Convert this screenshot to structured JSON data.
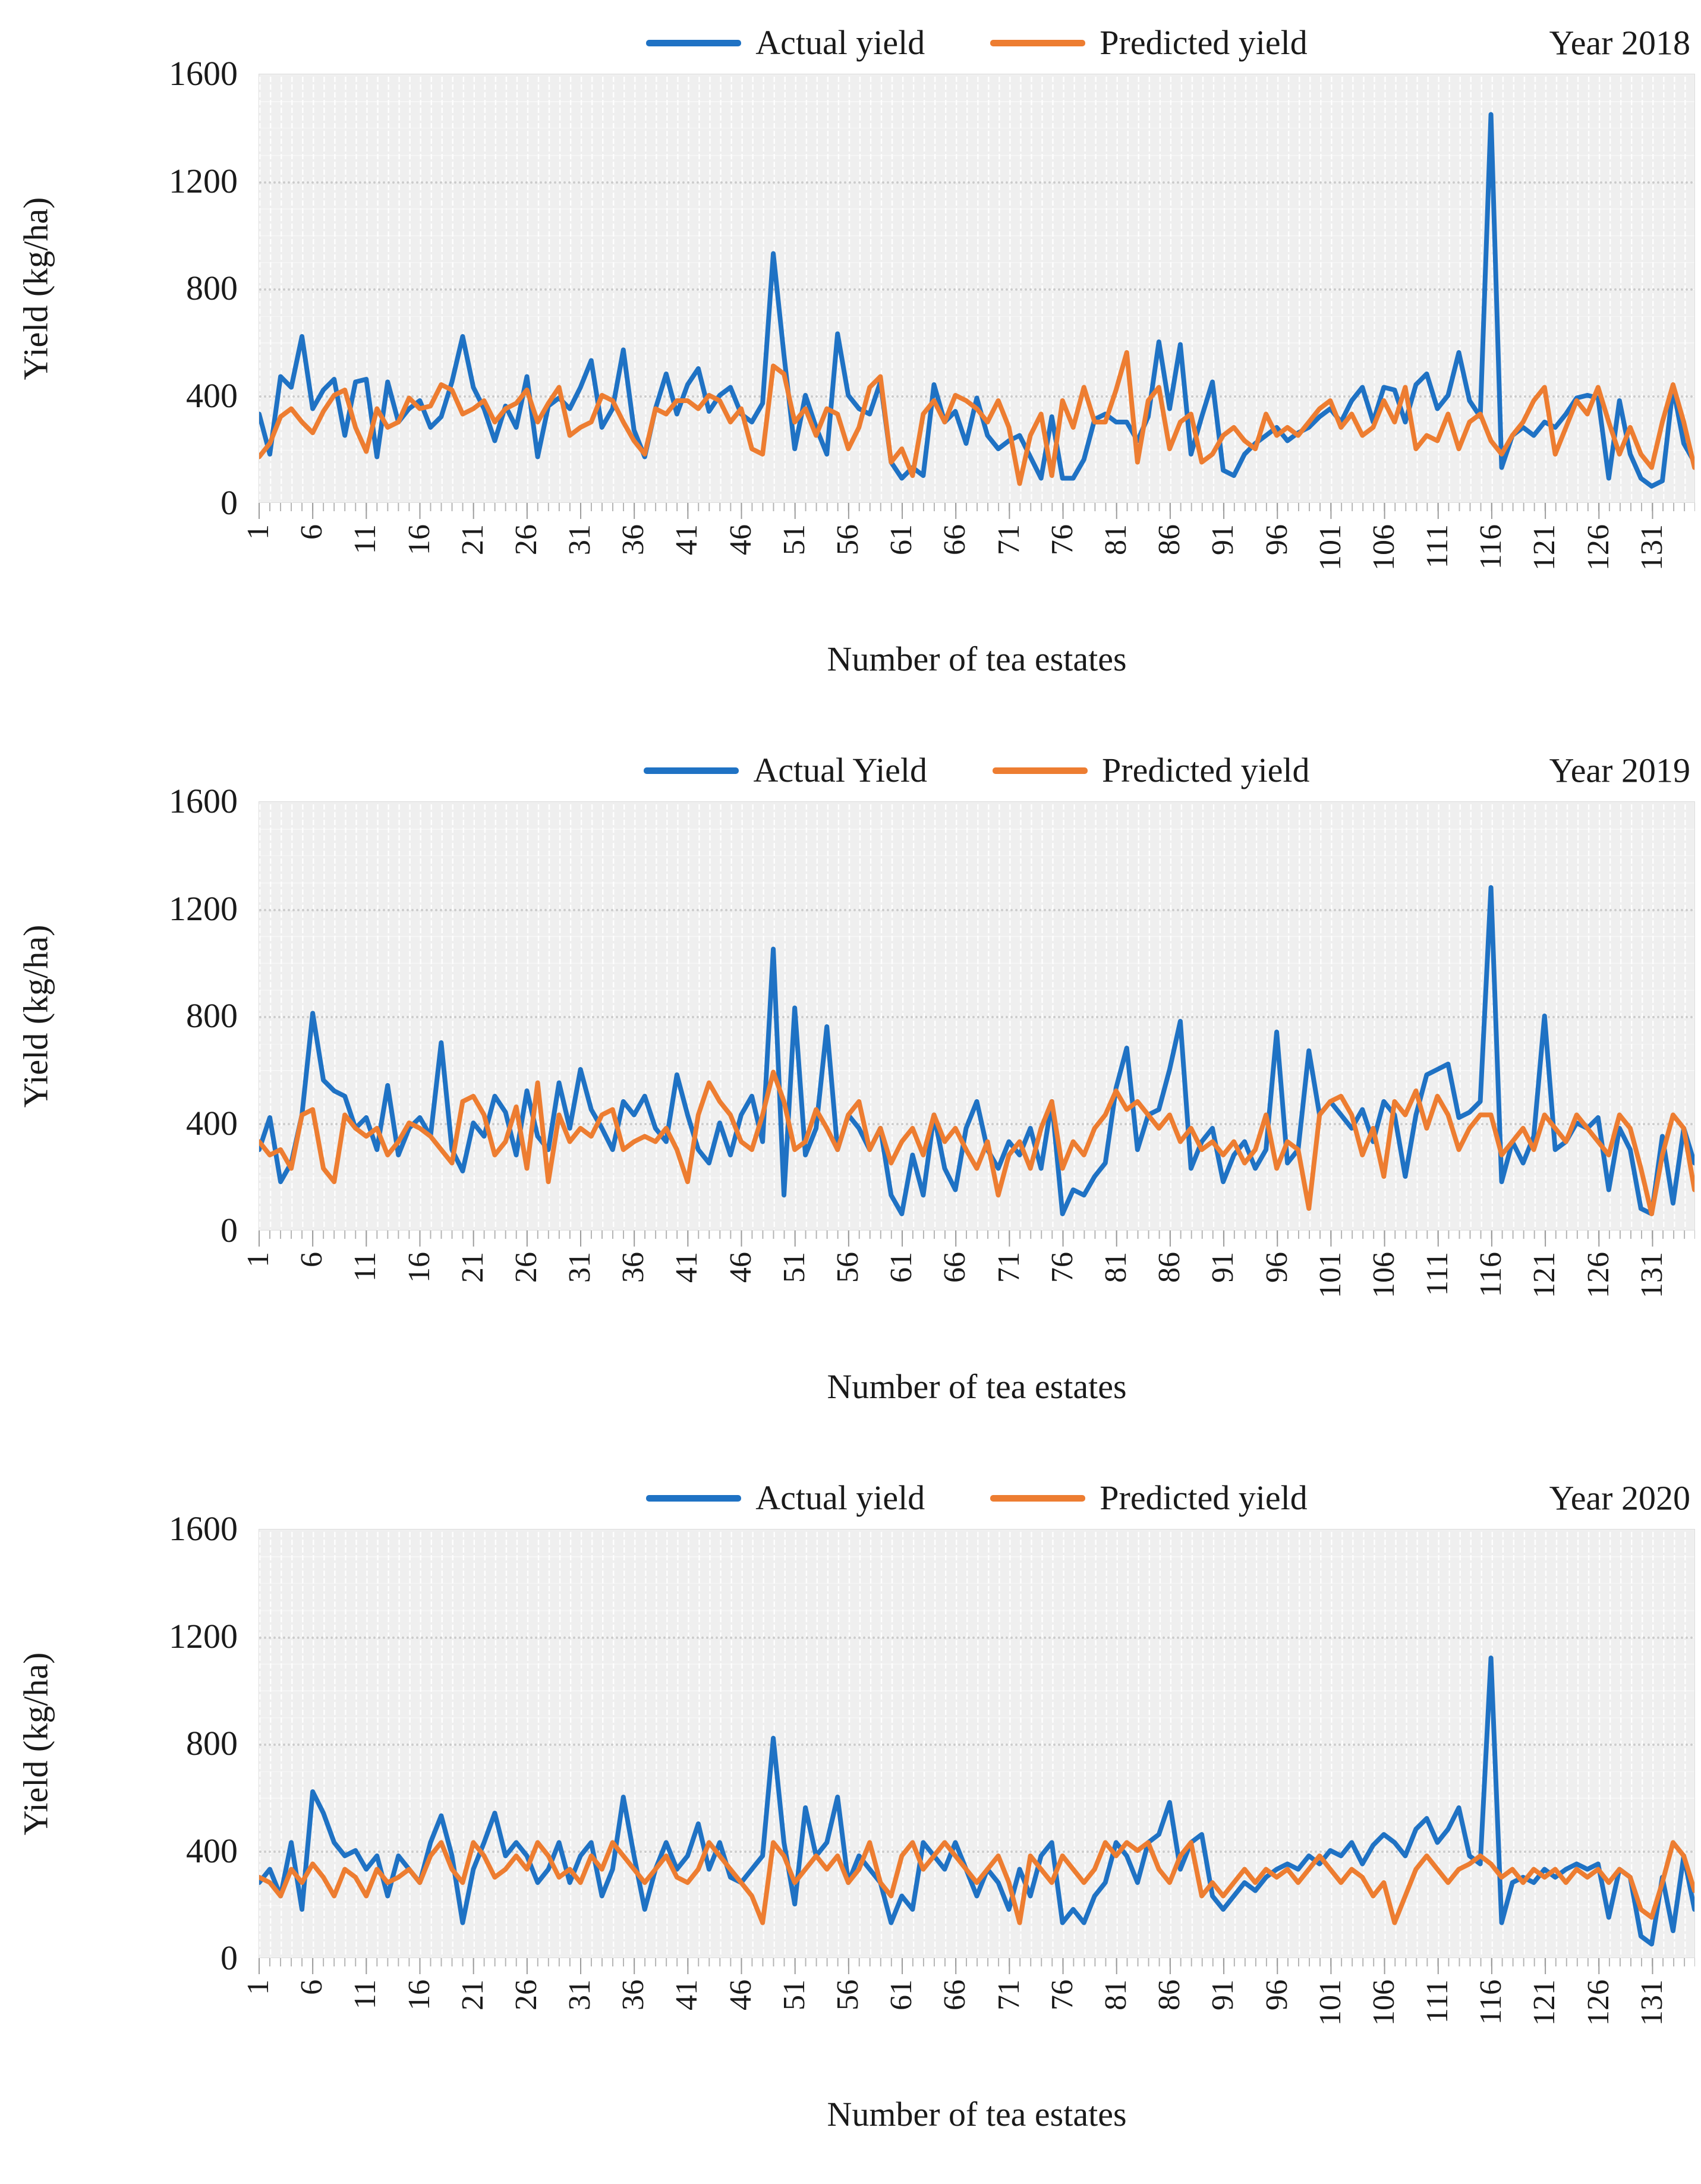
{
  "colors": {
    "actual": "#1F72C4",
    "predicted": "#ED7D31",
    "plot_background": "#EFEFEF",
    "gridline": "#FFFFFF",
    "dotted_gridline": "#CCCCCC",
    "text": "#1A1A1A"
  },
  "y_axis": {
    "title": "Yield (kg/ha)",
    "ticks": [
      "1600",
      "1200",
      "800",
      "400",
      "0"
    ],
    "max": 1600
  },
  "x_axis": {
    "title": "Number of tea estates",
    "tick_labels": [
      "1",
      "6",
      "11",
      "16",
      "21",
      "26",
      "31",
      "36",
      "41",
      "46",
      "51",
      "56",
      "61",
      "66",
      "71",
      "76",
      "81",
      "86",
      "91",
      "96",
      "101",
      "106",
      "111",
      "116",
      "121",
      "126",
      "131"
    ],
    "tick_step": 5,
    "points": 135
  },
  "charts": [
    {
      "year_label": "Year 2018",
      "legend": [
        {
          "label": "Actual yield"
        },
        {
          "label": "Predicted yield"
        }
      ]
    },
    {
      "year_label": "Year 2019",
      "legend": [
        {
          "label": "Actual Yield"
        },
        {
          "label": "Predicted yield"
        }
      ]
    },
    {
      "year_label": "Year 2020",
      "legend": [
        {
          "label": "Actual yield"
        },
        {
          "label": "Predicted yield"
        }
      ]
    }
  ],
  "chart_data": [
    {
      "type": "line",
      "title": "Year 2018",
      "xlabel": "Number of tea estates",
      "ylabel": "Yield (kg/ha)",
      "x_range": [
        1,
        135
      ],
      "ylim": [
        0,
        1600
      ],
      "grid": "vertical white dashed per estate, dotted horizontal at 400/800/1200",
      "legend_position": "top-center",
      "series": [
        {
          "name": "Actual yield",
          "values": [
            330,
            180,
            470,
            430,
            620,
            350,
            420,
            460,
            250,
            450,
            460,
            170,
            450,
            300,
            350,
            380,
            280,
            320,
            450,
            620,
            430,
            350,
            230,
            360,
            280,
            470,
            170,
            360,
            390,
            350,
            430,
            530,
            280,
            350,
            570,
            270,
            170,
            350,
            480,
            330,
            440,
            500,
            340,
            400,
            430,
            330,
            300,
            370,
            930,
            550,
            200,
            400,
            280,
            180,
            630,
            400,
            350,
            330,
            450,
            150,
            90,
            130,
            100,
            440,
            300,
            340,
            220,
            390,
            250,
            200,
            230,
            250,
            170,
            90,
            320,
            90,
            90,
            160,
            310,
            330,
            300,
            300,
            230,
            320,
            600,
            350,
            590,
            180,
            320,
            450,
            120,
            100,
            180,
            220,
            250,
            280,
            230,
            260,
            280,
            320,
            350,
            300,
            380,
            430,
            300,
            430,
            420,
            300,
            440,
            480,
            350,
            400,
            560,
            380,
            320,
            1450,
            130,
            250,
            280,
            250,
            300,
            280,
            330,
            390,
            400,
            390,
            90,
            380,
            180,
            90,
            60,
            80,
            430,
            220,
            150
          ]
        },
        {
          "name": "Predicted yield",
          "values": [
            170,
            220,
            320,
            350,
            300,
            260,
            340,
            400,
            420,
            280,
            190,
            350,
            280,
            300,
            390,
            350,
            360,
            440,
            420,
            330,
            350,
            380,
            300,
            350,
            370,
            420,
            300,
            370,
            430,
            250,
            280,
            300,
            400,
            380,
            300,
            230,
            180,
            350,
            330,
            380,
            380,
            350,
            400,
            380,
            300,
            350,
            200,
            180,
            510,
            480,
            300,
            350,
            250,
            350,
            330,
            200,
            280,
            430,
            470,
            150,
            200,
            100,
            330,
            380,
            300,
            400,
            380,
            350,
            300,
            380,
            280,
            70,
            250,
            330,
            100,
            380,
            280,
            430,
            300,
            300,
            420,
            560,
            150,
            380,
            430,
            200,
            300,
            330,
            150,
            180,
            250,
            280,
            230,
            200,
            330,
            250,
            280,
            250,
            300,
            350,
            380,
            280,
            330,
            250,
            280,
            380,
            300,
            430,
            200,
            250,
            230,
            330,
            200,
            300,
            330,
            230,
            180,
            250,
            300,
            380,
            430,
            180,
            280,
            380,
            330,
            430,
            300,
            180,
            280,
            180,
            130,
            300,
            440,
            300,
            130
          ]
        }
      ]
    },
    {
      "type": "line",
      "title": "Year 2019",
      "xlabel": "Number of tea estates",
      "ylabel": "Yield (kg/ha)",
      "x_range": [
        1,
        135
      ],
      "ylim": [
        0,
        1600
      ],
      "grid": "vertical white dashed per estate, dotted horizontal at 400/800/1200",
      "legend_position": "top-center",
      "series": [
        {
          "name": "Actual Yield",
          "values": [
            300,
            420,
            180,
            250,
            430,
            810,
            560,
            520,
            500,
            380,
            420,
            300,
            540,
            280,
            380,
            420,
            350,
            700,
            300,
            220,
            400,
            350,
            500,
            440,
            280,
            520,
            350,
            300,
            550,
            380,
            600,
            450,
            380,
            300,
            480,
            430,
            500,
            380,
            330,
            580,
            430,
            300,
            250,
            400,
            280,
            430,
            500,
            330,
            1050,
            130,
            830,
            280,
            380,
            760,
            300,
            430,
            380,
            300,
            380,
            130,
            60,
            280,
            130,
            430,
            230,
            150,
            380,
            480,
            300,
            230,
            330,
            280,
            380,
            230,
            480,
            60,
            150,
            130,
            200,
            250,
            530,
            680,
            300,
            430,
            450,
            600,
            780,
            230,
            330,
            380,
            180,
            280,
            330,
            230,
            300,
            740,
            250,
            300,
            670,
            430,
            480,
            430,
            380,
            450,
            330,
            480,
            430,
            200,
            430,
            580,
            600,
            620,
            420,
            440,
            480,
            1280,
            180,
            330,
            250,
            350,
            800,
            300,
            330,
            400,
            380,
            420,
            150,
            380,
            300,
            80,
            60,
            350,
            100,
            380,
            250
          ]
        },
        {
          "name": "Predicted yield",
          "values": [
            330,
            280,
            300,
            230,
            430,
            450,
            230,
            180,
            430,
            380,
            350,
            380,
            280,
            330,
            400,
            380,
            350,
            300,
            250,
            480,
            500,
            430,
            280,
            330,
            460,
            230,
            550,
            180,
            430,
            330,
            380,
            350,
            430,
            450,
            300,
            330,
            350,
            330,
            380,
            300,
            180,
            430,
            550,
            480,
            430,
            330,
            300,
            430,
            590,
            480,
            300,
            330,
            450,
            380,
            300,
            430,
            480,
            300,
            380,
            250,
            330,
            380,
            280,
            430,
            330,
            380,
            300,
            230,
            330,
            130,
            280,
            330,
            230,
            380,
            480,
            230,
            330,
            280,
            380,
            430,
            520,
            450,
            480,
            430,
            380,
            430,
            330,
            380,
            300,
            330,
            280,
            330,
            250,
            300,
            430,
            230,
            330,
            300,
            80,
            430,
            480,
            500,
            430,
            280,
            380,
            200,
            480,
            430,
            520,
            380,
            500,
            430,
            300,
            380,
            430,
            430,
            280,
            330,
            380,
            300,
            430,
            380,
            330,
            430,
            380,
            330,
            280,
            430,
            380,
            230,
            60,
            280,
            430,
            380,
            150
          ]
        }
      ]
    },
    {
      "type": "line",
      "title": "Year 2020",
      "xlabel": "Number of tea estates",
      "ylabel": "Yield (kg/ha)",
      "x_range": [
        1,
        135
      ],
      "ylim": [
        0,
        1600
      ],
      "grid": "vertical white dashed per estate, dotted horizontal at 400/800/1200",
      "legend_position": "top-center",
      "series": [
        {
          "name": "Actual yield",
          "values": [
            280,
            330,
            230,
            430,
            180,
            620,
            540,
            430,
            380,
            400,
            330,
            380,
            230,
            380,
            330,
            280,
            430,
            530,
            380,
            130,
            330,
            430,
            540,
            380,
            430,
            380,
            280,
            330,
            430,
            280,
            380,
            430,
            230,
            330,
            600,
            380,
            180,
            330,
            430,
            330,
            380,
            500,
            330,
            430,
            300,
            280,
            330,
            380,
            820,
            430,
            200,
            560,
            380,
            430,
            600,
            280,
            380,
            330,
            280,
            130,
            230,
            180,
            430,
            380,
            330,
            430,
            330,
            230,
            330,
            280,
            180,
            330,
            230,
            380,
            430,
            130,
            180,
            130,
            230,
            280,
            430,
            380,
            280,
            430,
            460,
            580,
            330,
            430,
            460,
            230,
            180,
            230,
            280,
            250,
            300,
            330,
            350,
            330,
            380,
            350,
            400,
            380,
            430,
            350,
            420,
            460,
            430,
            380,
            480,
            520,
            430,
            480,
            560,
            380,
            350,
            1120,
            130,
            280,
            300,
            280,
            330,
            300,
            330,
            350,
            330,
            350,
            150,
            330,
            300,
            80,
            50,
            300,
            100,
            380,
            180
          ]
        },
        {
          "name": "Predicted yield",
          "values": [
            300,
            280,
            230,
            330,
            280,
            350,
            300,
            230,
            330,
            300,
            230,
            330,
            280,
            300,
            330,
            280,
            380,
            430,
            330,
            280,
            430,
            380,
            300,
            330,
            380,
            330,
            430,
            380,
            300,
            330,
            280,
            380,
            330,
            430,
            380,
            330,
            280,
            330,
            380,
            300,
            280,
            330,
            430,
            380,
            330,
            280,
            230,
            130,
            430,
            380,
            280,
            330,
            380,
            330,
            380,
            280,
            330,
            430,
            280,
            230,
            380,
            430,
            330,
            380,
            430,
            380,
            330,
            280,
            330,
            380,
            280,
            130,
            380,
            330,
            280,
            380,
            330,
            280,
            330,
            430,
            380,
            430,
            400,
            430,
            330,
            280,
            380,
            430,
            230,
            280,
            230,
            280,
            330,
            280,
            330,
            300,
            330,
            280,
            330,
            380,
            330,
            280,
            330,
            300,
            230,
            280,
            130,
            230,
            330,
            380,
            330,
            280,
            330,
            350,
            380,
            350,
            300,
            330,
            280,
            330,
            300,
            330,
            280,
            330,
            300,
            330,
            280,
            330,
            300,
            180,
            150,
            280,
            430,
            380,
            250
          ]
        }
      ]
    }
  ]
}
